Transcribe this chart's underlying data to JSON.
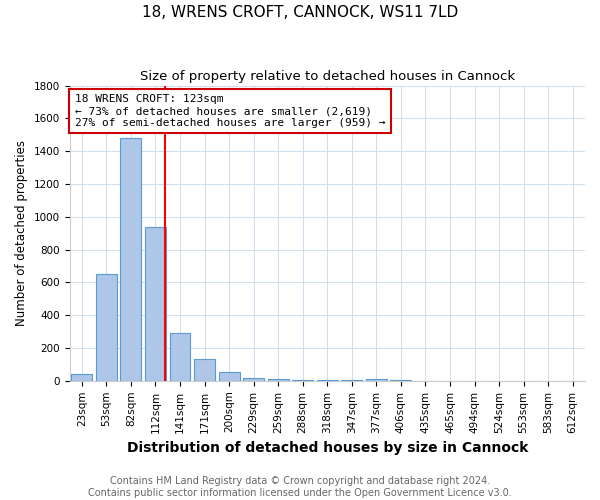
{
  "title1": "18, WRENS CROFT, CANNOCK, WS11 7LD",
  "title2": "Size of property relative to detached houses in Cannock",
  "xlabel": "Distribution of detached houses by size in Cannock",
  "ylabel": "Number of detached properties",
  "bins": [
    "23sqm",
    "53sqm",
    "82sqm",
    "112sqm",
    "141sqm",
    "171sqm",
    "200sqm",
    "229sqm",
    "259sqm",
    "288sqm",
    "318sqm",
    "347sqm",
    "377sqm",
    "406sqm",
    "435sqm",
    "465sqm",
    "494sqm",
    "524sqm",
    "553sqm",
    "583sqm",
    "612sqm"
  ],
  "values": [
    40,
    650,
    1480,
    940,
    290,
    130,
    55,
    20,
    10,
    5,
    5,
    5,
    10,
    5,
    0,
    0,
    0,
    0,
    0,
    0,
    0
  ],
  "bar_color": "#aec6e8",
  "bar_edge_color": "#5b9bd5",
  "annotation_line1": "18 WRENS CROFT: 123sqm",
  "annotation_line2": "← 73% of detached houses are smaller (2,619)",
  "annotation_line3": "27% of semi-detached houses are larger (959) →",
  "annotation_box_color": "#ffffff",
  "annotation_box_edge": "#cc0000",
  "footnote": "Contains HM Land Registry data © Crown copyright and database right 2024.\nContains public sector information licensed under the Open Government Licence v3.0.",
  "ylim": [
    0,
    1800
  ],
  "yticks": [
    0,
    200,
    400,
    600,
    800,
    1000,
    1200,
    1400,
    1600,
    1800
  ],
  "title1_fontsize": 11,
  "title2_fontsize": 9.5,
  "xlabel_fontsize": 10,
  "ylabel_fontsize": 8.5,
  "tick_fontsize": 7.5,
  "annot_fontsize": 8,
  "footnote_fontsize": 7
}
